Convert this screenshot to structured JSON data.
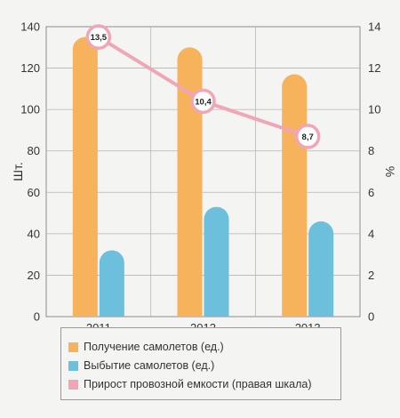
{
  "chart_data": {
    "type": "bar",
    "categories": [
      "2011",
      "2012",
      "2013"
    ],
    "series": [
      {
        "name": "Получение самолетов (ед.)",
        "values": [
          135,
          130,
          117
        ],
        "color": "#f7b25c",
        "axis": "left",
        "kind": "bar"
      },
      {
        "name": "Выбытие самолетов (ед.)",
        "values": [
          32,
          53,
          46
        ],
        "color": "#6cc0dc",
        "axis": "left",
        "kind": "bar"
      },
      {
        "name": "Прирост провозной емкости  (правая шкала)",
        "values": [
          13.5,
          10.4,
          8.7
        ],
        "labels": [
          "13,5",
          "10,4",
          "8,7"
        ],
        "color": "#f0a6b6",
        "axis": "right",
        "kind": "line"
      }
    ],
    "ylabel": "Шт.",
    "y2label": "%",
    "ylim": [
      0,
      140
    ],
    "y2lim": [
      0,
      14
    ],
    "yticks": [
      0,
      20,
      40,
      60,
      80,
      100,
      120,
      140
    ],
    "y2ticks": [
      0,
      2,
      4,
      6,
      8,
      10,
      12,
      14
    ],
    "grid": true,
    "legend_position": "bottom"
  }
}
